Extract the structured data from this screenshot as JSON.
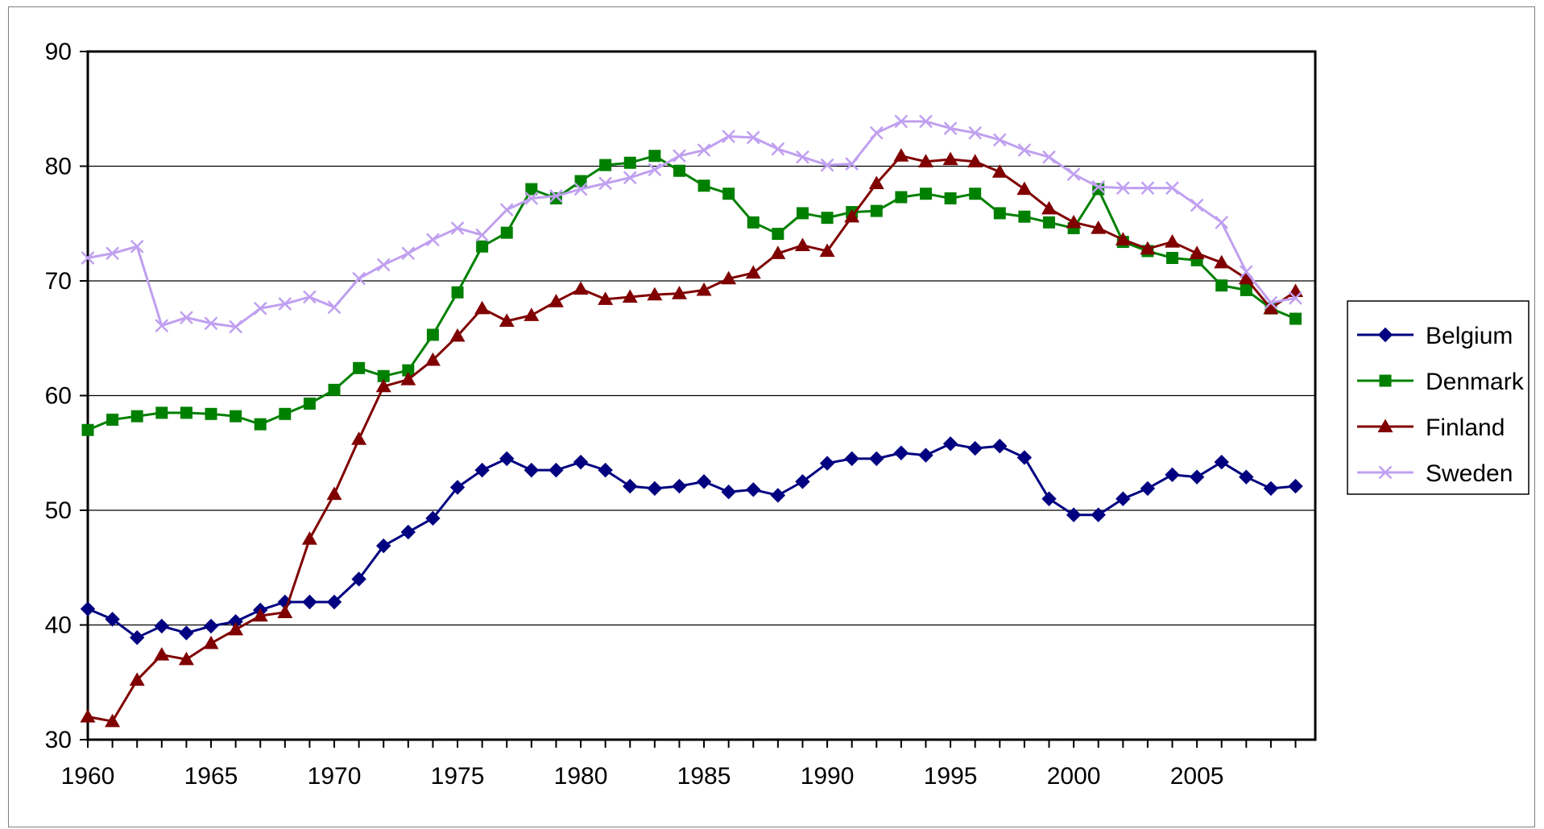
{
  "chart_data": {
    "type": "line",
    "title": "",
    "xlabel": "",
    "ylabel": "",
    "xlim": [
      1960,
      2009.8
    ],
    "ylim": [
      30,
      90
    ],
    "x_ticks": [
      1960,
      1965,
      1970,
      1975,
      1980,
      1985,
      1990,
      1995,
      2000,
      2005
    ],
    "y_ticks": [
      30,
      40,
      50,
      60,
      70,
      80,
      90
    ],
    "grid": "horizontal",
    "legend_position": "right",
    "x": [
      1960,
      1961,
      1962,
      1963,
      1964,
      1965,
      1966,
      1967,
      1968,
      1969,
      1970,
      1971,
      1972,
      1973,
      1974,
      1975,
      1976,
      1977,
      1978,
      1979,
      1980,
      1981,
      1982,
      1983,
      1984,
      1985,
      1986,
      1987,
      1988,
      1989,
      1990,
      1991,
      1992,
      1993,
      1994,
      1995,
      1996,
      1997,
      1998,
      1999,
      2000,
      2001,
      2002,
      2003,
      2004,
      2005,
      2006,
      2007,
      2008,
      2009
    ],
    "series": [
      {
        "name": "Belgium",
        "color": "#000080",
        "marker": "diamond",
        "values": [
          41.4,
          40.5,
          38.9,
          39.9,
          39.3,
          39.9,
          40.3,
          41.3,
          42.0,
          42.0,
          42.0,
          44.0,
          46.9,
          48.1,
          49.3,
          52.0,
          53.5,
          54.5,
          53.5,
          53.5,
          54.2,
          53.5,
          52.1,
          51.9,
          52.1,
          52.5,
          51.6,
          51.8,
          51.3,
          52.5,
          54.1,
          54.5,
          54.5,
          55.0,
          54.8,
          55.8,
          55.4,
          55.6,
          54.6,
          51.0,
          49.6,
          49.6,
          51.0,
          51.9,
          53.1,
          52.9,
          54.2,
          52.9,
          51.9,
          52.1
        ]
      },
      {
        "name": "Denmark",
        "color": "#008000",
        "marker": "square",
        "values": [
          57.0,
          57.9,
          58.2,
          58.5,
          58.5,
          58.4,
          58.2,
          57.5,
          58.4,
          59.3,
          60.5,
          62.4,
          61.7,
          62.2,
          65.3,
          69.0,
          73.0,
          74.2,
          78.0,
          77.2,
          78.7,
          80.1,
          80.3,
          80.9,
          79.6,
          78.3,
          77.6,
          75.1,
          74.1,
          75.9,
          75.5,
          76.0,
          76.1,
          77.3,
          77.6,
          77.2,
          77.6,
          75.9,
          75.6,
          75.1,
          74.6,
          78.0,
          73.4,
          72.6,
          72.0,
          71.8,
          69.6,
          69.2,
          67.6,
          66.7
        ]
      },
      {
        "name": "Finland",
        "color": "#800000",
        "marker": "triangle",
        "values": [
          32.0,
          31.6,
          35.2,
          37.4,
          37.0,
          38.4,
          39.6,
          40.8,
          41.1,
          47.5,
          51.4,
          56.2,
          60.8,
          61.4,
          63.1,
          65.2,
          67.6,
          66.5,
          67.0,
          68.2,
          69.3,
          68.4,
          68.6,
          68.8,
          68.9,
          69.2,
          70.2,
          70.7,
          72.4,
          73.1,
          72.6,
          75.6,
          78.5,
          80.9,
          80.4,
          80.6,
          80.4,
          79.5,
          78.0,
          76.3,
          75.1,
          74.6,
          73.6,
          72.8,
          73.4,
          72.4,
          71.6,
          70.2,
          67.6,
          69.1
        ]
      },
      {
        "name": "Sweden",
        "color": "#C0A0F0",
        "marker": "x",
        "values": [
          72.0,
          72.4,
          73.0,
          66.1,
          66.8,
          66.3,
          66.0,
          67.6,
          68.0,
          68.6,
          67.7,
          70.2,
          71.4,
          72.4,
          73.6,
          74.6,
          74.0,
          76.2,
          77.2,
          77.4,
          78.0,
          78.5,
          79.0,
          79.7,
          80.9,
          81.4,
          82.6,
          82.5,
          81.5,
          80.8,
          80.1,
          80.2,
          82.9,
          83.9,
          83.9,
          83.3,
          82.9,
          82.3,
          81.4,
          80.8,
          79.3,
          78.2,
          78.1,
          78.1,
          78.1,
          76.6,
          75.1,
          70.8,
          68.1,
          68.5
        ]
      }
    ]
  }
}
